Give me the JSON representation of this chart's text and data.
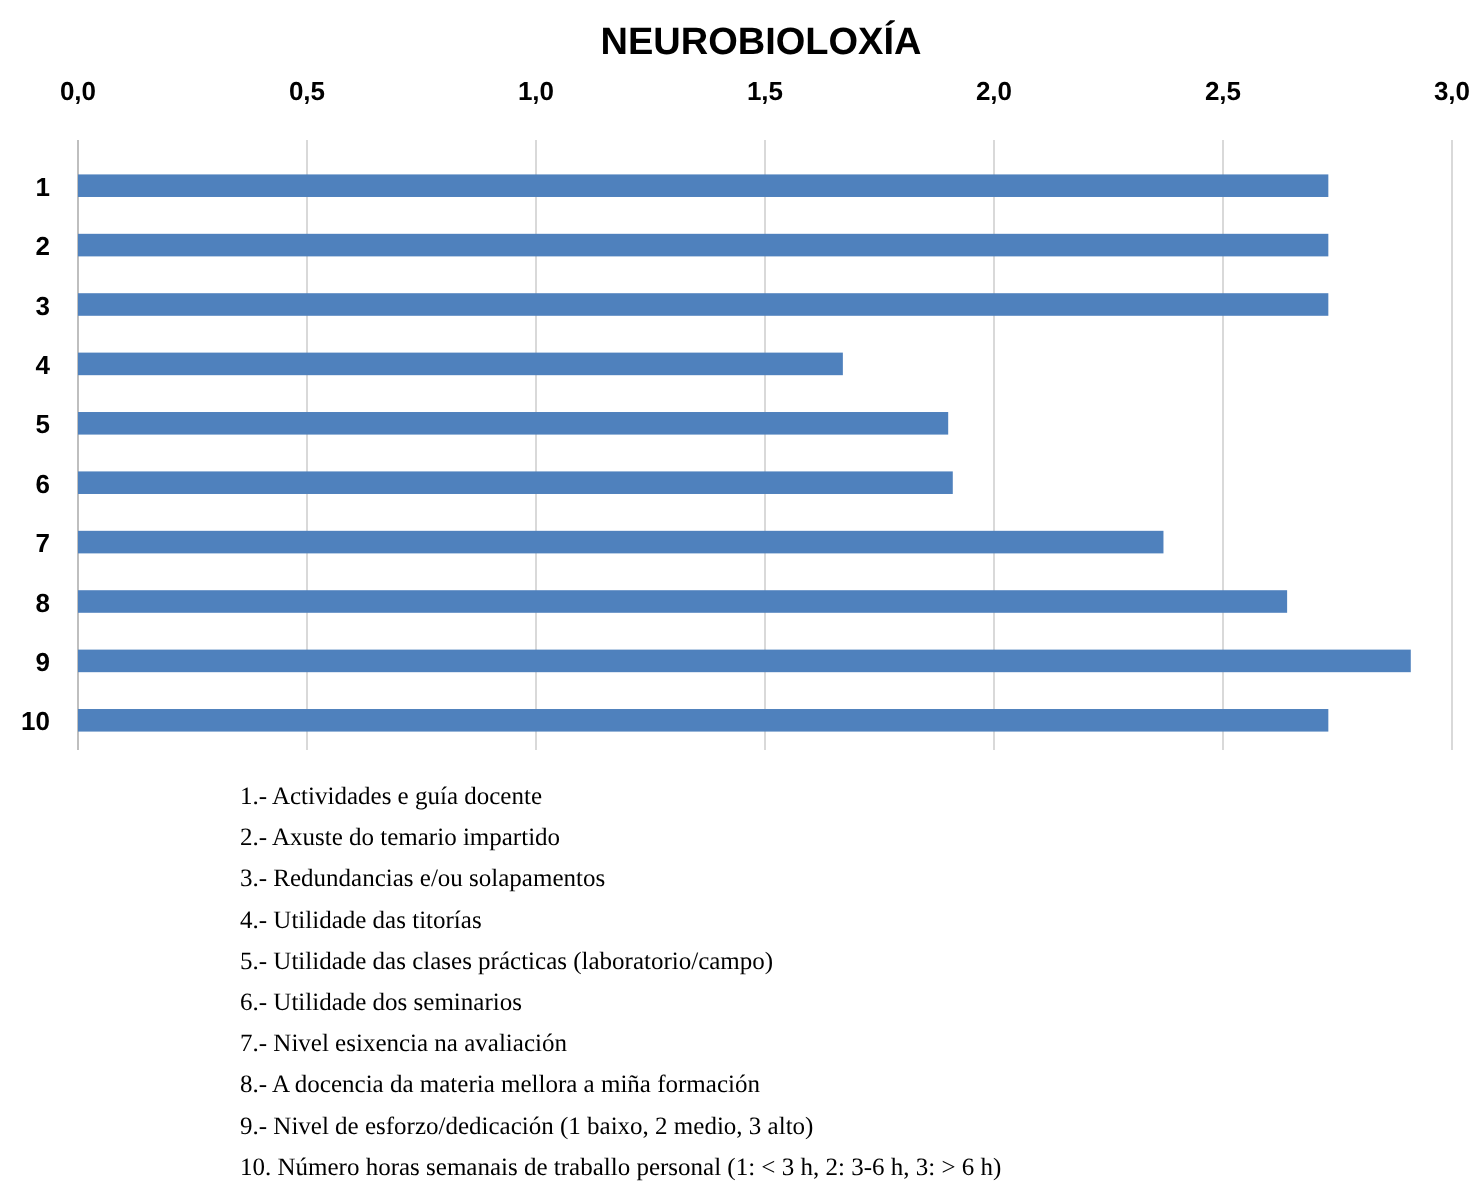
{
  "chart_data": {
    "type": "bar",
    "orientation": "horizontal",
    "title": "NEUROBIOLOXÍA",
    "categories": [
      "1",
      "2",
      "3",
      "4",
      "5",
      "6",
      "7",
      "8",
      "9",
      "10"
    ],
    "values": [
      2.73,
      2.73,
      2.73,
      1.67,
      1.9,
      1.91,
      2.37,
      2.64,
      2.91,
      2.73
    ],
    "color": "#4f81bd",
    "xlim": [
      0,
      3
    ],
    "xticks": [
      {
        "value": 0,
        "label": "0,0"
      },
      {
        "value": 0.5,
        "label": "0,5"
      },
      {
        "value": 1,
        "label": "1,0"
      },
      {
        "value": 1.5,
        "label": "1,5"
      },
      {
        "value": 2,
        "label": "2,0"
      },
      {
        "value": 2.5,
        "label": "2,5"
      },
      {
        "value": 3,
        "label": "3,0"
      }
    ],
    "grid": "x",
    "annotations": [
      "1.- Actividades e guía docente",
      "2.- Axuste do temario impartido",
      "3.- Redundancias e/ou solapamentos",
      "4.- Utilidade das titorías",
      "5.- Utilidade das clases prácticas (laboratorio/campo)",
      "6.- Utilidade dos seminarios",
      "7.- Nivel esixencia na avaliación",
      "8.- A docencia da materia mellora a miña formación",
      "9.- Nivel de esforzo/dedicación (1 baixo, 2 medio, 3 alto)",
      "10. Número horas semanais de traballo personal (1: < 3 h, 2: 3-6 h, 3: > 6 h)"
    ]
  }
}
